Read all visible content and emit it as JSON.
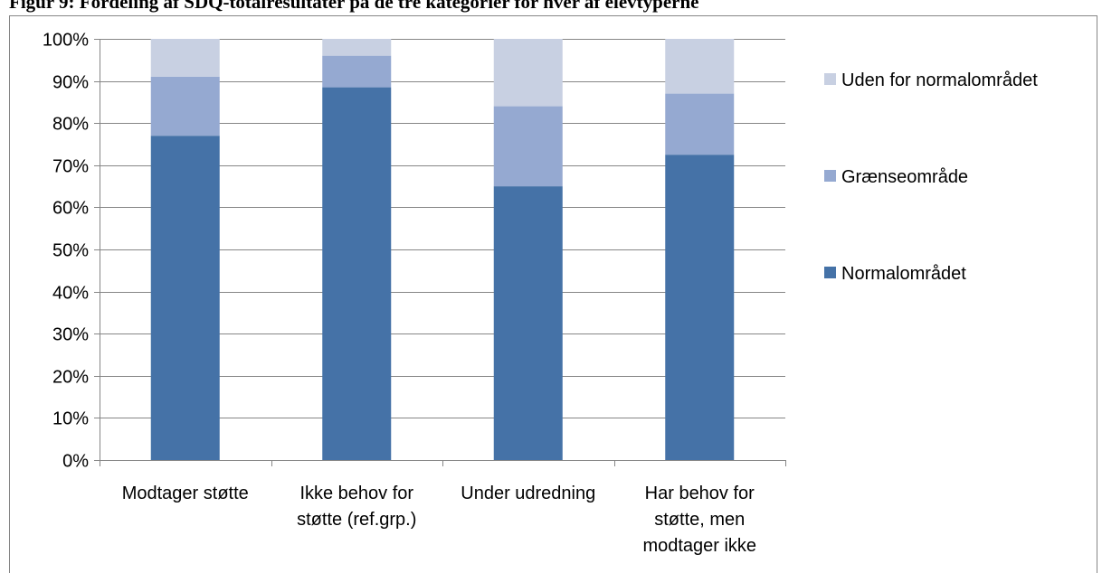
{
  "caption": "Figur 9: Fordeling af SDQ-totalresultater på de tre kategorier for hver af elevtyperne",
  "colors": {
    "axis": "#868686",
    "grid": "#868686",
    "frame": "#868686"
  },
  "chart_data": {
    "type": "bar",
    "stacked": true,
    "title": "",
    "xlabel": "",
    "ylabel": "",
    "ylim": [
      0,
      1
    ],
    "ytick_step": 0.1,
    "yticks": [
      "0%",
      "10%",
      "20%",
      "30%",
      "40%",
      "50%",
      "60%",
      "70%",
      "80%",
      "90%",
      "100%"
    ],
    "grid": true,
    "legend_position": "right",
    "categories": [
      "Modtager støtte",
      "Ikke behov for støtte (ref.grp.)",
      "Under udredning",
      "Har behov for støtte, men modtager ikke"
    ],
    "category_lines": [
      [
        "Modtager støtte"
      ],
      [
        "Ikke behov for",
        "støtte (ref.grp.)"
      ],
      [
        "Under udredning"
      ],
      [
        "Har behov for",
        "støtte, men",
        "modtager ikke"
      ]
    ],
    "series": [
      {
        "name": "Normalområdet",
        "color": "#4572a7",
        "values": [
          0.77,
          0.885,
          0.65,
          0.725
        ]
      },
      {
        "name": "Grænseområde",
        "color": "#95a9d1",
        "values": [
          0.14,
          0.075,
          0.19,
          0.145
        ]
      },
      {
        "name": "Uden for normalområdet",
        "color": "#c8d0e2",
        "values": [
          0.09,
          0.04,
          0.16,
          0.13
        ]
      }
    ],
    "legend_order": [
      "Uden for normalområdet",
      "Grænseområde",
      "Normalområdet"
    ]
  }
}
